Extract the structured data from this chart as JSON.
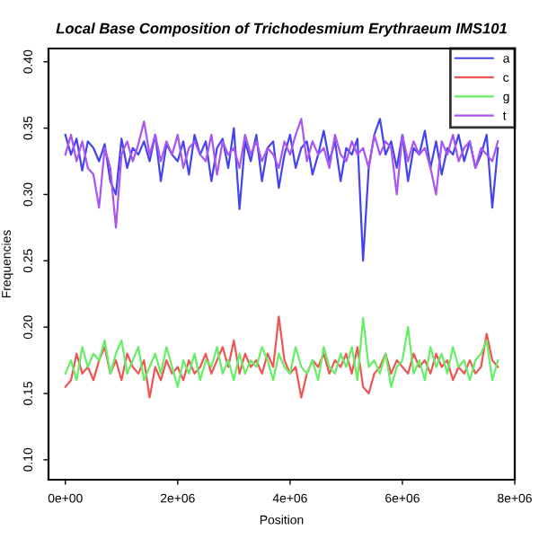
{
  "chart_data": {
    "type": "line",
    "title": "Local Base Composition of Trichodesmium Erythraeum IMS101",
    "xlabel": "Position",
    "ylabel": "Frequencies",
    "x": [
      0,
      100000,
      200000,
      300000,
      400000,
      500000,
      600000,
      700000,
      800000,
      900000,
      1000000,
      1100000,
      1200000,
      1300000,
      1400000,
      1500000,
      1600000,
      1700000,
      1800000,
      1900000,
      2000000,
      2100000,
      2200000,
      2300000,
      2400000,
      2500000,
      2600000,
      2700000,
      2800000,
      2900000,
      3000000,
      3100000,
      3200000,
      3300000,
      3400000,
      3500000,
      3600000,
      3700000,
      3800000,
      3900000,
      4000000,
      4100000,
      4200000,
      4300000,
      4400000,
      4500000,
      4600000,
      4700000,
      4800000,
      4900000,
      5000000,
      5100000,
      5200000,
      5300000,
      5400000,
      5500000,
      5600000,
      5700000,
      5800000,
      5900000,
      6000000,
      6100000,
      6200000,
      6300000,
      6400000,
      6500000,
      6600000,
      6700000,
      6800000,
      6900000,
      7000000,
      7100000,
      7200000,
      7300000,
      7400000,
      7500000,
      7600000,
      7700000
    ],
    "series": [
      {
        "name": "a",
        "color": "#4444ee",
        "values": [
          0.345,
          0.33,
          0.342,
          0.318,
          0.34,
          0.335,
          0.325,
          0.338,
          0.31,
          0.3,
          0.342,
          0.32,
          0.335,
          0.33,
          0.34,
          0.325,
          0.345,
          0.31,
          0.338,
          0.33,
          0.325,
          0.34,
          0.315,
          0.345,
          0.33,
          0.34,
          0.31,
          0.335,
          0.342,
          0.32,
          0.35,
          0.289,
          0.34,
          0.325,
          0.345,
          0.31,
          0.335,
          0.34,
          0.305,
          0.33,
          0.345,
          0.32,
          0.335,
          0.34,
          0.315,
          0.33,
          0.348,
          0.325,
          0.34,
          0.31,
          0.335,
          0.33,
          0.342,
          0.25,
          0.32,
          0.345,
          0.357,
          0.33,
          0.34,
          0.32,
          0.345,
          0.31,
          0.335,
          0.33,
          0.348,
          0.32,
          0.34,
          0.315,
          0.335,
          0.33,
          0.345,
          0.325,
          0.34,
          0.32,
          0.33,
          0.345,
          0.29,
          0.335
        ]
      },
      {
        "name": "c",
        "color": "#ee5555",
        "values": [
          0.155,
          0.16,
          0.18,
          0.165,
          0.17,
          0.16,
          0.175,
          0.185,
          0.165,
          0.175,
          0.16,
          0.18,
          0.17,
          0.165,
          0.175,
          0.147,
          0.17,
          0.16,
          0.175,
          0.165,
          0.17,
          0.16,
          0.175,
          0.165,
          0.17,
          0.18,
          0.165,
          0.175,
          0.185,
          0.17,
          0.19,
          0.165,
          0.18,
          0.17,
          0.175,
          0.165,
          0.18,
          0.17,
          0.208,
          0.175,
          0.165,
          0.17,
          0.147,
          0.165,
          0.175,
          0.17,
          0.18,
          0.165,
          0.175,
          0.17,
          0.18,
          0.165,
          0.185,
          0.155,
          0.15,
          0.165,
          0.17,
          0.18,
          0.165,
          0.175,
          0.17,
          0.165,
          0.18,
          0.17,
          0.175,
          0.165,
          0.18,
          0.17,
          0.175,
          0.16,
          0.17,
          0.165,
          0.175,
          0.165,
          0.17,
          0.195,
          0.175,
          0.17
        ]
      },
      {
        "name": "g",
        "color": "#66ee66",
        "values": [
          0.165,
          0.175,
          0.16,
          0.185,
          0.17,
          0.18,
          0.175,
          0.19,
          0.165,
          0.18,
          0.19,
          0.165,
          0.175,
          0.185,
          0.16,
          0.17,
          0.18,
          0.165,
          0.185,
          0.17,
          0.155,
          0.175,
          0.165,
          0.18,
          0.16,
          0.175,
          0.17,
          0.185,
          0.165,
          0.175,
          0.16,
          0.18,
          0.165,
          0.175,
          0.17,
          0.185,
          0.175,
          0.16,
          0.18,
          0.17,
          0.165,
          0.185,
          0.17,
          0.165,
          0.175,
          0.16,
          0.185,
          0.17,
          0.165,
          0.18,
          0.17,
          0.185,
          0.16,
          0.207,
          0.17,
          0.175,
          0.165,
          0.18,
          0.155,
          0.17,
          0.175,
          0.2,
          0.165,
          0.175,
          0.16,
          0.185,
          0.17,
          0.18,
          0.165,
          0.185,
          0.17,
          0.175,
          0.16,
          0.175,
          0.18,
          0.19,
          0.16,
          0.175
        ]
      },
      {
        "name": "t",
        "color": "#aa55ee",
        "values": [
          0.33,
          0.345,
          0.325,
          0.34,
          0.32,
          0.315,
          0.29,
          0.335,
          0.32,
          0.275,
          0.33,
          0.34,
          0.325,
          0.338,
          0.355,
          0.33,
          0.345,
          0.325,
          0.34,
          0.33,
          0.345,
          0.32,
          0.335,
          0.34,
          0.33,
          0.325,
          0.345,
          0.315,
          0.34,
          0.33,
          0.335,
          0.32,
          0.345,
          0.33,
          0.34,
          0.325,
          0.335,
          0.33,
          0.32,
          0.34,
          0.33,
          0.345,
          0.357,
          0.325,
          0.34,
          0.33,
          0.335,
          0.32,
          0.345,
          0.33,
          0.325,
          0.34,
          0.33,
          0.335,
          0.32,
          0.345,
          0.33,
          0.34,
          0.335,
          0.3,
          0.345,
          0.325,
          0.34,
          0.33,
          0.335,
          0.32,
          0.3,
          0.34,
          0.33,
          0.345,
          0.325,
          0.335,
          0.34,
          0.32,
          0.335,
          0.33,
          0.325,
          0.34
        ]
      }
    ],
    "xlim": [
      -300000,
      8000000
    ],
    "xticks": [
      {
        "value": 0,
        "label": "0e+00"
      },
      {
        "value": 2000000,
        "label": "2e+06"
      },
      {
        "value": 4000000,
        "label": "4e+06"
      },
      {
        "value": 6000000,
        "label": "6e+06"
      },
      {
        "value": 8000000,
        "label": "8e+06"
      }
    ],
    "ylim": [
      0.085,
      0.41
    ],
    "yticks": [
      {
        "value": 0.1,
        "label": "0.10"
      },
      {
        "value": 0.15,
        "label": "0.15"
      },
      {
        "value": 0.2,
        "label": "0.20"
      },
      {
        "value": 0.25,
        "label": "0.25"
      },
      {
        "value": 0.3,
        "label": "0.30"
      },
      {
        "value": 0.35,
        "label": "0.35"
      },
      {
        "value": 0.4,
        "label": "0.40"
      }
    ],
    "legend": "top right",
    "grid": false,
    "marker": "none",
    "line_style": "solid"
  }
}
